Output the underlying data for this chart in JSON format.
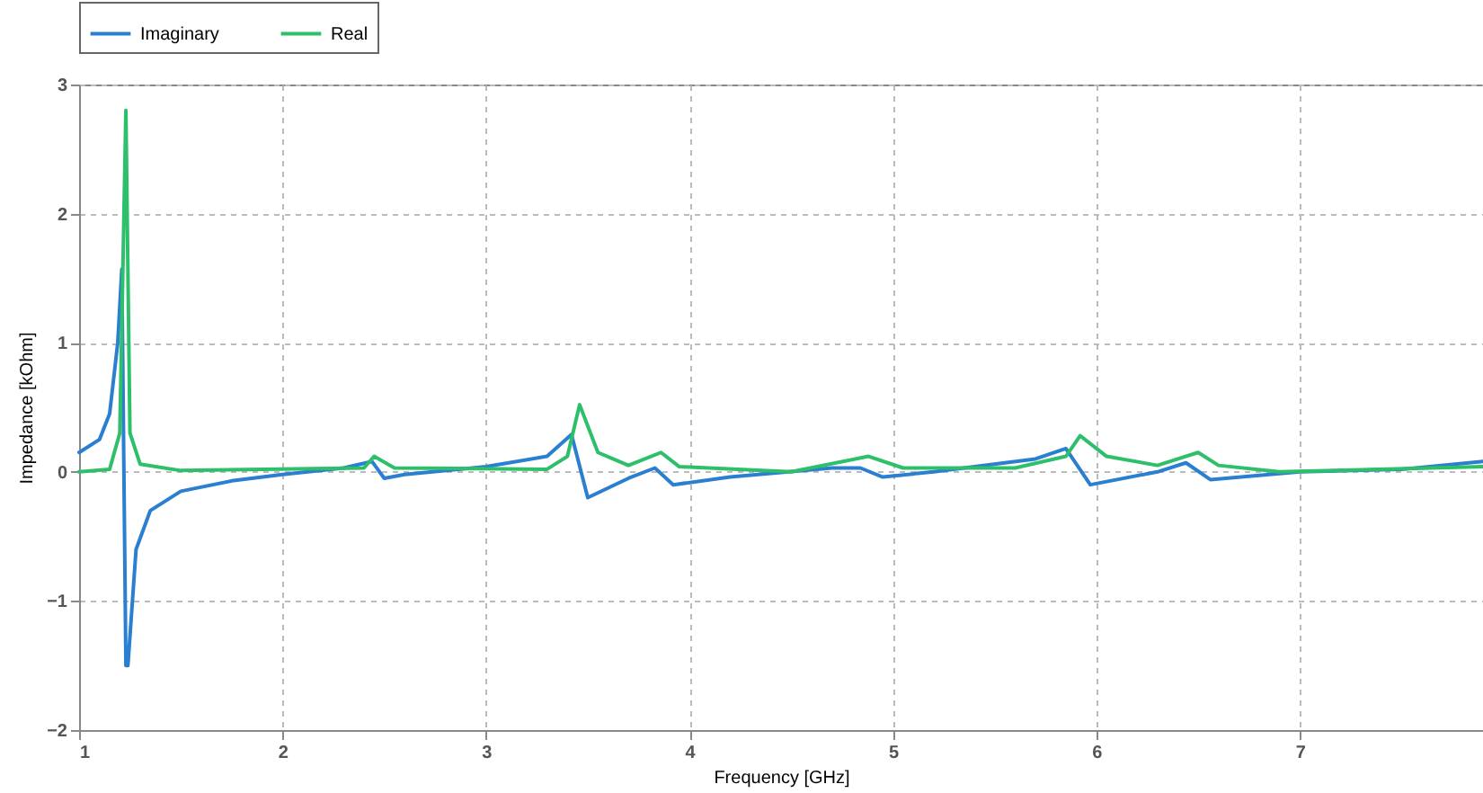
{
  "chart_data": {
    "type": "line",
    "xlabel": "Frequency [GHz]",
    "ylabel": "Impedance [kOhm]",
    "xlim": [
      1,
      7.9
    ],
    "ylim": [
      -2,
      3
    ],
    "xticks": [
      1,
      2,
      3,
      4,
      5,
      6,
      7
    ],
    "yticks": [
      -2,
      -1,
      0,
      1,
      2,
      3
    ],
    "grid": true,
    "legend": "top",
    "marker": "none",
    "line_style": "solid",
    "series": [
      {
        "name": "Imaginary",
        "color": "#2a7fd0",
        "x": [
          1,
          1.1,
          1.15,
          1.19,
          1.21,
          1.23,
          1.24,
          1.28,
          1.35,
          1.5,
          1.75,
          2,
          2.3,
          2.44,
          2.5,
          2.6,
          3,
          3.3,
          3.42,
          3.5,
          3.7,
          3.83,
          3.92,
          4.2,
          4.7,
          4.84,
          4.95,
          5.2,
          5.7,
          5.85,
          5.97,
          6.3,
          6.44,
          6.56,
          7,
          7.5,
          7.9
        ],
        "values": [
          0.15,
          0.25,
          0.45,
          1,
          1.57,
          -1.5,
          -1.5,
          -0.6,
          -0.3,
          -0.15,
          -0.07,
          -0.02,
          0.03,
          0.08,
          -0.05,
          -0.02,
          0.04,
          0.12,
          0.29,
          -0.2,
          -0.05,
          0.03,
          -0.1,
          -0.04,
          0.03,
          0.03,
          -0.04,
          0,
          0.1,
          0.18,
          -0.1,
          0,
          0.07,
          -0.06,
          0,
          0.02,
          0.08
        ]
      },
      {
        "name": "Real",
        "color": "#2ebf6a",
        "x": [
          1,
          1.15,
          1.2,
          1.23,
          1.25,
          1.3,
          1.5,
          2.4,
          2.45,
          2.55,
          3.3,
          3.4,
          3.46,
          3.55,
          3.7,
          3.86,
          3.95,
          4.5,
          4.88,
          5.05,
          5.6,
          5.85,
          5.92,
          6.05,
          6.3,
          6.5,
          6.6,
          6.9,
          7.9
        ],
        "values": [
          0,
          0.02,
          0.3,
          2.8,
          0.3,
          0.06,
          0.01,
          0.03,
          0.12,
          0.03,
          0.02,
          0.12,
          0.52,
          0.15,
          0.05,
          0.15,
          0.04,
          0,
          0.12,
          0.03,
          0.03,
          0.12,
          0.28,
          0.12,
          0.05,
          0.15,
          0.05,
          0,
          0.04
        ]
      }
    ]
  }
}
